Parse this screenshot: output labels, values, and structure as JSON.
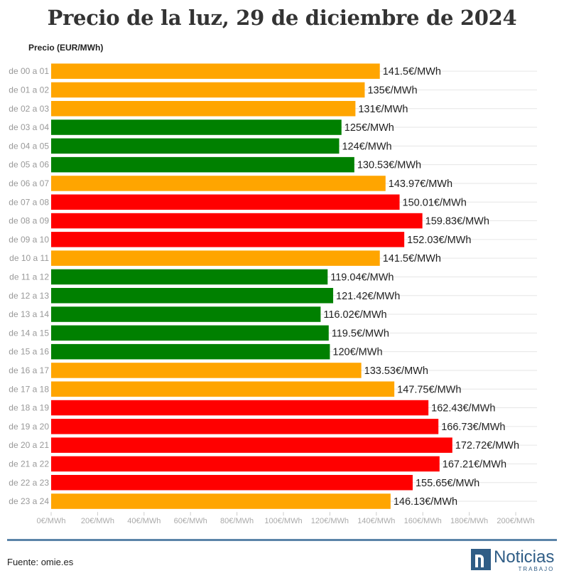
{
  "title": "Precio de la luz, 29 de diciembre de 2024",
  "source": "Fuente: omie.es",
  "brand": {
    "name": "Noticias",
    "sub": "TRABAJO",
    "color": "#2f5d86"
  },
  "colors": {
    "low": "#008000",
    "mid": "#ffa500",
    "high": "#ff0000",
    "grid": "#e6e6e6",
    "rule": "#5b84a8"
  },
  "chart_data": {
    "type": "bar",
    "orientation": "horizontal",
    "title": "Precio de la luz, 29 de diciembre de 2024",
    "ylabel": "Precio (EUR/MWh)",
    "xlabel": "",
    "xlim": [
      0,
      200
    ],
    "unit": "€/MWh",
    "ticks": [
      {
        "value": 0,
        "label": "0€/MWh"
      },
      {
        "value": 20,
        "label": "20€/MWh"
      },
      {
        "value": 40,
        "label": "40€/MWh"
      },
      {
        "value": 60,
        "label": "60€/MWh"
      },
      {
        "value": 80,
        "label": "80€/MWh"
      },
      {
        "value": 100,
        "label": "100€/MWh"
      },
      {
        "value": 120,
        "label": "120€/MWh"
      },
      {
        "value": 140,
        "label": "140€/MWh"
      },
      {
        "value": 160,
        "label": "160€/MWh"
      },
      {
        "value": 180,
        "label": "180€/MWh"
      },
      {
        "value": 200,
        "label": "200€/MWh"
      }
    ],
    "bars": [
      {
        "category": "de 00 a 01",
        "value": 141.5,
        "label": "141.5€/MWh",
        "level": "mid"
      },
      {
        "category": "de 01 a 02",
        "value": 135,
        "label": "135€/MWh",
        "level": "mid"
      },
      {
        "category": "de 02 a 03",
        "value": 131,
        "label": "131€/MWh",
        "level": "mid"
      },
      {
        "category": "de 03 a 04",
        "value": 125,
        "label": "125€/MWh",
        "level": "low"
      },
      {
        "category": "de 04 a 05",
        "value": 124,
        "label": "124€/MWh",
        "level": "low"
      },
      {
        "category": "de 05 a 06",
        "value": 130.53,
        "label": "130.53€/MWh",
        "level": "low"
      },
      {
        "category": "de 06 a 07",
        "value": 143.97,
        "label": "143.97€/MWh",
        "level": "mid"
      },
      {
        "category": "de 07 a 08",
        "value": 150.01,
        "label": "150.01€/MWh",
        "level": "high"
      },
      {
        "category": "de 08 a 09",
        "value": 159.83,
        "label": "159.83€/MWh",
        "level": "high"
      },
      {
        "category": "de 09 a 10",
        "value": 152.03,
        "label": "152.03€/MWh",
        "level": "high"
      },
      {
        "category": "de 10 a 11",
        "value": 141.5,
        "label": "141.5€/MWh",
        "level": "mid"
      },
      {
        "category": "de 11 a 12",
        "value": 119.04,
        "label": "119.04€/MWh",
        "level": "low"
      },
      {
        "category": "de 12 a 13",
        "value": 121.42,
        "label": "121.42€/MWh",
        "level": "low"
      },
      {
        "category": "de 13 a 14",
        "value": 116.02,
        "label": "116.02€/MWh",
        "level": "low"
      },
      {
        "category": "de 14 a 15",
        "value": 119.5,
        "label": "119.5€/MWh",
        "level": "low"
      },
      {
        "category": "de 15 a 16",
        "value": 120,
        "label": "120€/MWh",
        "level": "low"
      },
      {
        "category": "de 16 a 17",
        "value": 133.53,
        "label": "133.53€/MWh",
        "level": "mid"
      },
      {
        "category": "de 17 a 18",
        "value": 147.75,
        "label": "147.75€/MWh",
        "level": "mid"
      },
      {
        "category": "de 18 a 19",
        "value": 162.43,
        "label": "162.43€/MWh",
        "level": "high"
      },
      {
        "category": "de 19 a 20",
        "value": 166.73,
        "label": "166.73€/MWh",
        "level": "high"
      },
      {
        "category": "de 20 a 21",
        "value": 172.72,
        "label": "172.72€/MWh",
        "level": "high"
      },
      {
        "category": "de 21 a 22",
        "value": 167.21,
        "label": "167.21€/MWh",
        "level": "high"
      },
      {
        "category": "de 22 a 23",
        "value": 155.65,
        "label": "155.65€/MWh",
        "level": "high"
      },
      {
        "category": "de 23 a 24",
        "value": 146.13,
        "label": "146.13€/MWh",
        "level": "mid"
      }
    ]
  }
}
